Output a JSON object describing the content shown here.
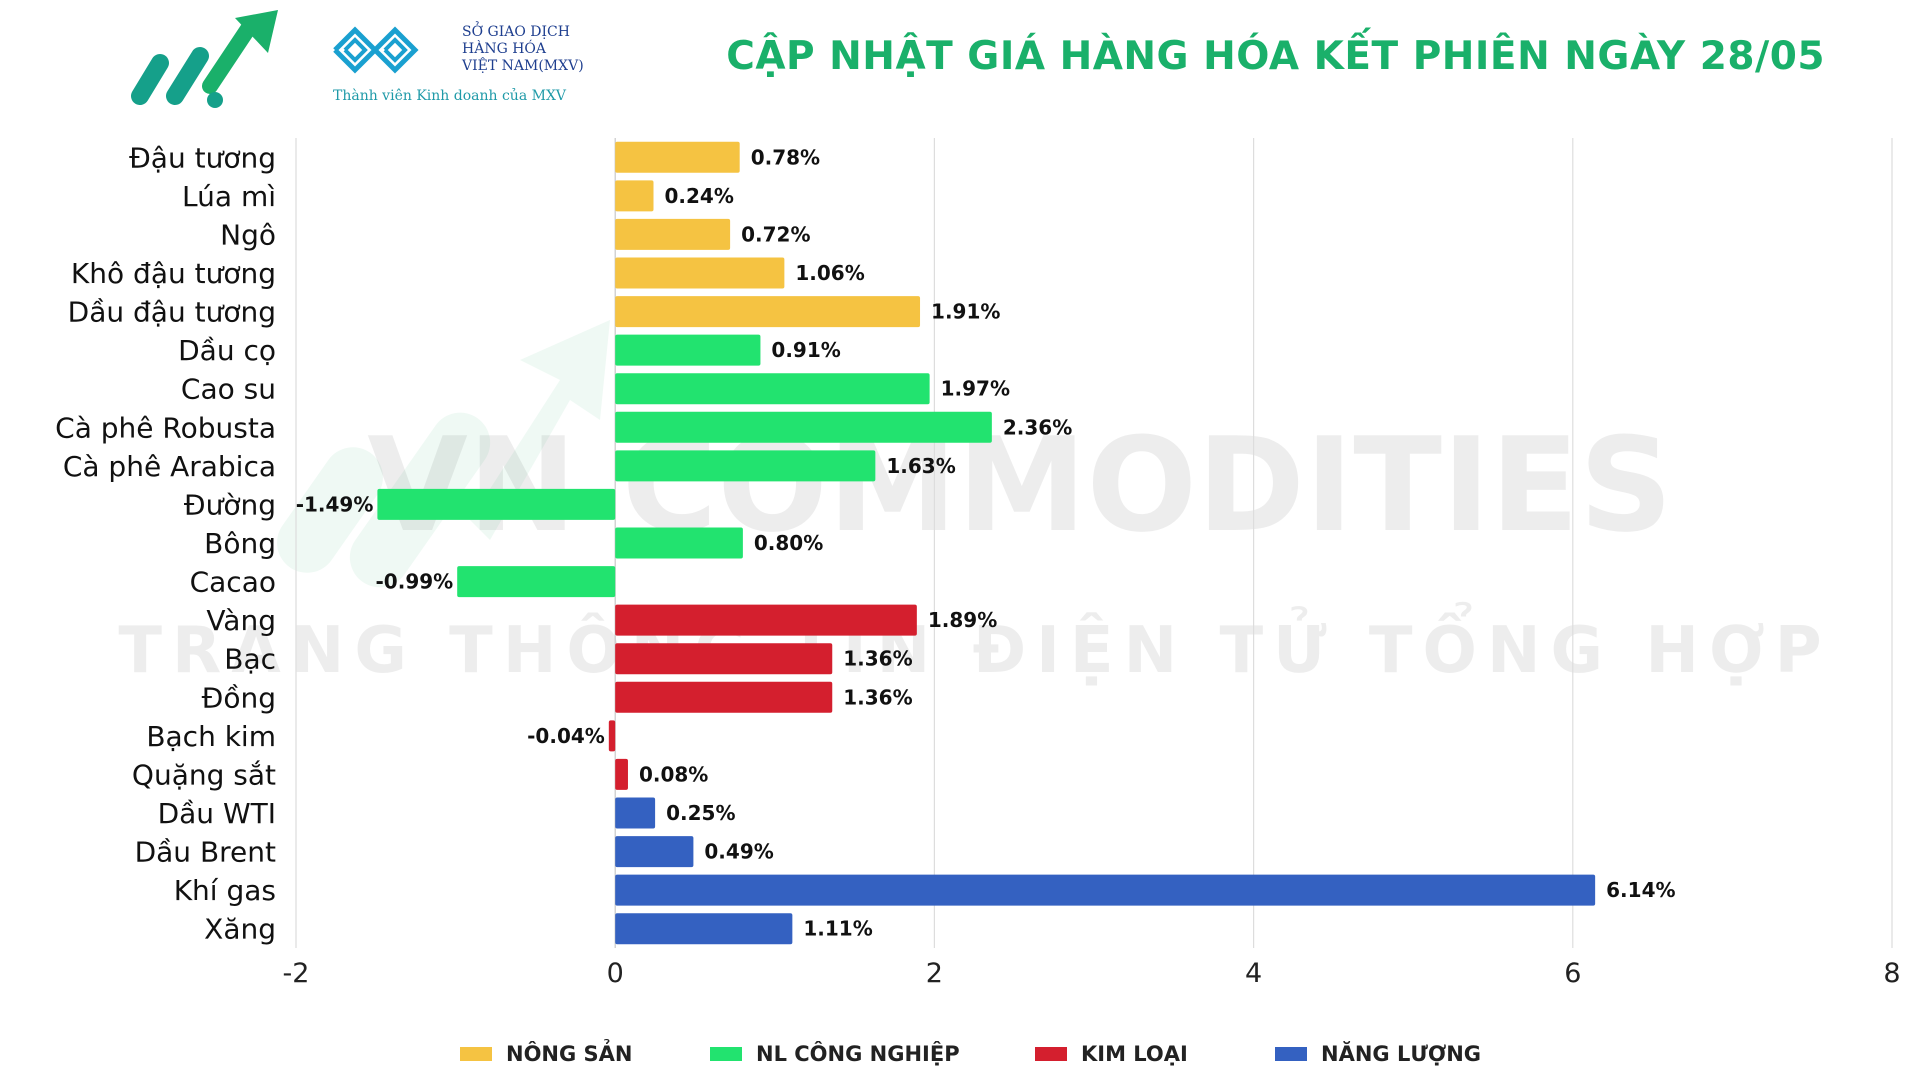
{
  "header": {
    "title": "CẬP NHẬT GIÁ HÀNG HÓA KẾT PHIÊN NGÀY 28/05",
    "mxv_lines": [
      "SỞ GIAO DỊCH",
      "HÀNG HÓA",
      "VIỆT NAM(MXV)"
    ],
    "mxv_subtitle": "Thành viên Kinh doanh của MXV",
    "title_color": "#1ab06a"
  },
  "watermark": {
    "line1": "VN COMMODITIES",
    "line2": "TRANG THÔNG TIN ĐIỆN TỬ TỔNG HỢP"
  },
  "colors": {
    "NÔNG SẢN": "#f5c342",
    "NL CÔNG NGHIỆP": "#22e36f",
    "KIM LOẠI": "#d41f2e",
    "NĂNG LƯỢNG": "#3461c1"
  },
  "legend": [
    "NÔNG SẢN",
    "NL CÔNG NGHIỆP",
    "KIM LOẠI",
    "NĂNG LƯỢNG"
  ],
  "chart_data": {
    "type": "bar",
    "orientation": "horizontal",
    "xlim": [
      -2,
      8
    ],
    "xticks": [
      "-2",
      "0",
      "2",
      "4",
      "6",
      "8"
    ],
    "grid": true,
    "legend_position": "bottom",
    "categories": [
      "Đậu tương",
      "Lúa mì",
      "Ngô",
      "Khô đậu tương",
      "Dầu đậu tương",
      "Dầu cọ",
      "Cao su",
      "Cà phê Robusta",
      "Cà phê Arabica",
      "Đường",
      "Bông",
      "Cacao",
      "Vàng",
      "Bạc",
      "Đồng",
      "Bạch kim",
      "Quặng sắt",
      "Dầu WTI",
      "Dầu Brent",
      "Khí gas",
      "Xăng"
    ],
    "values": [
      0.78,
      0.24,
      0.72,
      1.06,
      1.91,
      0.91,
      1.97,
      2.36,
      1.63,
      -1.49,
      0.8,
      -0.99,
      1.89,
      1.36,
      1.36,
      -0.04,
      0.08,
      0.25,
      0.49,
      6.14,
      1.11
    ],
    "labels": [
      "0.78%",
      "0.24%",
      "0.72%",
      "1.06%",
      "1.91%",
      "0.91%",
      "1.97%",
      "2.36%",
      "1.63%",
      "-1.49%",
      "0.80%",
      "-0.99%",
      "1.89%",
      "1.36%",
      "1.36%",
      "-0.04%",
      "0.08%",
      "0.25%",
      "0.49%",
      "6.14%",
      "1.11%"
    ],
    "groups": [
      "NÔNG SẢN",
      "NÔNG SẢN",
      "NÔNG SẢN",
      "NÔNG SẢN",
      "NÔNG SẢN",
      "NL CÔNG NGHIỆP",
      "NL CÔNG NGHIỆP",
      "NL CÔNG NGHIỆP",
      "NL CÔNG NGHIỆP",
      "NL CÔNG NGHIỆP",
      "NL CÔNG NGHIỆP",
      "NL CÔNG NGHIỆP",
      "KIM LOẠI",
      "KIM LOẠI",
      "KIM LOẠI",
      "KIM LOẠI",
      "KIM LOẠI",
      "NĂNG LƯỢNG",
      "NĂNG LƯỢNG",
      "NĂNG LƯỢNG",
      "NĂNG LƯỢNG"
    ]
  }
}
